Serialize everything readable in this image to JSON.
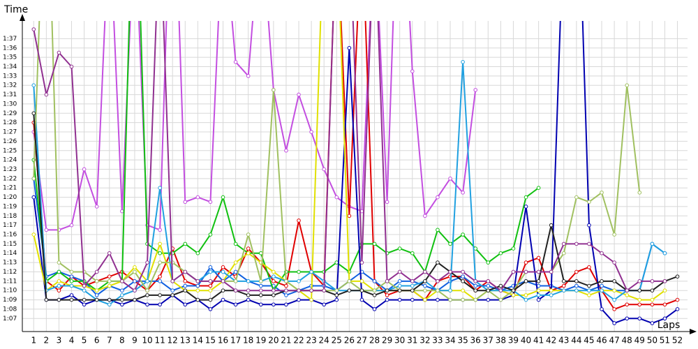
{
  "chart_data": {
    "type": "line",
    "y_label": "Time",
    "x_label": "Laps",
    "x": [
      1,
      2,
      3,
      4,
      5,
      6,
      7,
      8,
      9,
      10,
      11,
      12,
      13,
      14,
      15,
      16,
      17,
      18,
      19,
      20,
      21,
      22,
      23,
      24,
      25,
      26,
      27,
      28,
      29,
      30,
      31,
      32,
      33,
      34,
      35,
      36,
      37,
      38,
      39,
      40,
      41,
      42,
      43,
      44,
      45,
      46,
      47,
      48,
      49,
      50,
      51,
      52
    ],
    "xlim": [
      0.1,
      52.8
    ],
    "xticks": [
      1,
      2,
      3,
      4,
      5,
      6,
      7,
      8,
      9,
      10,
      11,
      12,
      13,
      14,
      15,
      16,
      17,
      18,
      19,
      20,
      21,
      22,
      23,
      24,
      25,
      26,
      27,
      28,
      29,
      30,
      31,
      32,
      33,
      34,
      35,
      36,
      37,
      38,
      39,
      40,
      41,
      42,
      43,
      44,
      45,
      46,
      47,
      48,
      49,
      50,
      51,
      52
    ],
    "ylim": [
      65.6,
      98.9
    ],
    "yticks": [
      {
        "value": 67,
        "label": "1:07"
      },
      {
        "value": 68,
        "label": "1:08"
      },
      {
        "value": 69,
        "label": "1:09"
      },
      {
        "value": 70,
        "label": "1:10"
      },
      {
        "value": 71,
        "label": "1:11"
      },
      {
        "value": 72,
        "label": "1:12"
      },
      {
        "value": 73,
        "label": "1:13"
      },
      {
        "value": 74,
        "label": "1:14"
      },
      {
        "value": 75,
        "label": "1:15"
      },
      {
        "value": 76,
        "label": "1:16"
      },
      {
        "value": 77,
        "label": "1:17"
      },
      {
        "value": 78,
        "label": "1:18"
      },
      {
        "value": 79,
        "label": "1:19"
      },
      {
        "value": 80,
        "label": "1:20"
      },
      {
        "value": 81,
        "label": "1:21"
      },
      {
        "value": 82,
        "label": "1:22"
      },
      {
        "value": 83,
        "label": "1:23"
      },
      {
        "value": 84,
        "label": "1:24"
      },
      {
        "value": 85,
        "label": "1:25"
      },
      {
        "value": 86,
        "label": "1:26"
      },
      {
        "value": 87,
        "label": "1:27"
      },
      {
        "value": 88,
        "label": "1:28"
      },
      {
        "value": 89,
        "label": "1:29"
      },
      {
        "value": 90,
        "label": "1:30"
      },
      {
        "value": 91,
        "label": "1:31"
      },
      {
        "value": 92,
        "label": "1:32"
      },
      {
        "value": 93,
        "label": "1:33"
      },
      {
        "value": 94,
        "label": "1:34"
      },
      {
        "value": 95,
        "label": "1:35"
      },
      {
        "value": 96,
        "label": "1:36"
      },
      {
        "value": 97,
        "label": "1:37"
      }
    ],
    "grid": true,
    "series": [
      {
        "color": "#c34ee0",
        "values": [
          87,
          76.5,
          76.5,
          77,
          83,
          79,
          110,
          78.5,
          110,
          77,
          76.5,
          120,
          79.5,
          80,
          79.5,
          110,
          94.5,
          93,
          110,
          91.5,
          85,
          91,
          87,
          83,
          80,
          79,
          78.5,
          110,
          79.5,
          120,
          93.5,
          78,
          80,
          82,
          80.5,
          91.5,
          null,
          null,
          null,
          null,
          null,
          null,
          null,
          null,
          null,
          null,
          null,
          null,
          null,
          null,
          null,
          null
        ]
      },
      {
        "color": "#e00000",
        "values": [
          88,
          71,
          70,
          71.5,
          70.5,
          71,
          71.5,
          72,
          71,
          70,
          71.5,
          74.5,
          71,
          70.5,
          70.5,
          72.5,
          71.5,
          74.5,
          73,
          71,
          70.5,
          77.5,
          72,
          70.5,
          110,
          78,
          110,
          71,
          69.5,
          70,
          70,
          69,
          71,
          71.5,
          71.5,
          70,
          71,
          70,
          69.5,
          73,
          73.5,
          70,
          70.5,
          72,
          72.5,
          70,
          68,
          68.5,
          68.5,
          68.5,
          68.5,
          69
        ]
      },
      {
        "color": "#1060e0",
        "values": [
          82,
          71.5,
          72,
          71.5,
          71,
          69.5,
          70.5,
          70,
          71,
          71,
          71,
          70,
          70.5,
          70.5,
          72.5,
          71,
          72,
          71,
          70.5,
          70.5,
          69.5,
          70,
          70.5,
          70.5,
          70,
          71,
          72,
          71,
          70,
          71,
          71,
          70.5,
          70,
          71,
          71.5,
          70.5,
          70.5,
          70,
          70.5,
          71,
          70.5,
          70.5,
          70,
          70.5,
          70,
          70.5,
          70,
          70,
          70,
          75,
          74,
          null
        ]
      },
      {
        "color": "#10c010",
        "values": [
          84,
          71,
          72,
          71,
          71,
          70,
          71,
          71,
          120,
          75,
          74,
          74,
          75,
          74,
          76,
          80,
          75,
          74,
          74,
          70,
          72,
          72,
          72,
          72,
          73,
          72,
          75,
          75,
          74,
          74.5,
          74,
          72,
          76.5,
          75,
          76,
          74.5,
          73,
          74,
          74.5,
          80,
          81,
          null,
          null,
          null,
          null,
          null,
          null,
          null,
          null,
          null,
          null,
          null
        ]
      },
      {
        "color": "#0000b0",
        "values": [
          80,
          69,
          69,
          69.5,
          68.5,
          69,
          69,
          68.5,
          69,
          68.5,
          68.5,
          69.5,
          68.5,
          69,
          68,
          69,
          68.5,
          69,
          68.5,
          68.5,
          68.5,
          69,
          69,
          68.5,
          69,
          96,
          69,
          68,
          69,
          69,
          69,
          69,
          69,
          69,
          69,
          69,
          69,
          69,
          69.5,
          79,
          69,
          70,
          110,
          120,
          77,
          68,
          66.5,
          67,
          67,
          66.5,
          67,
          68
        ]
      },
      {
        "color": "#e0e000",
        "values": [
          76,
          70,
          71,
          70.5,
          70.5,
          70,
          70.5,
          71,
          72.5,
          71,
          75,
          71,
          70,
          70,
          70,
          71,
          73,
          74,
          73,
          72,
          71,
          70,
          69,
          110,
          110,
          71,
          71,
          70,
          70,
          70,
          70,
          69,
          70,
          70,
          70,
          69,
          70,
          70,
          69.5,
          69.5,
          70,
          70,
          70,
          70,
          69.5,
          70,
          70,
          69.5,
          69,
          69,
          70,
          null
        ]
      },
      {
        "color": "#20a0e0",
        "values": [
          92,
          70,
          70.5,
          70.5,
          70,
          69,
          68.5,
          69.5,
          70,
          71,
          81,
          71,
          72,
          71,
          72,
          72,
          71,
          71,
          71,
          71.5,
          71,
          71,
          72,
          71,
          70,
          70,
          70,
          70,
          70,
          70.5,
          70.5,
          71,
          70,
          70,
          94.5,
          71,
          70,
          70,
          70,
          69,
          69.5,
          69.5,
          70,
          70,
          70,
          70,
          69,
          70,
          70,
          75,
          74,
          null
        ]
      },
      {
        "color": "#a0c060",
        "values": [
          82,
          120,
          73,
          72,
          72,
          71,
          71,
          71,
          72,
          70,
          73,
          73,
          72,
          71,
          71,
          71,
          71,
          76,
          71,
          91.5,
          71,
          70,
          70,
          70,
          70,
          71,
          70,
          70,
          71,
          70,
          70,
          70,
          70,
          69,
          69,
          69,
          70,
          69,
          70,
          72,
          72,
          72,
          74,
          80,
          79.5,
          80.5,
          76,
          92,
          80.5,
          null,
          null,
          null
        ]
      },
      {
        "color": "#202020",
        "values": [
          89,
          69,
          69,
          69,
          69,
          69,
          69,
          69,
          69,
          69.5,
          69.5,
          69.5,
          70,
          69,
          69,
          70,
          70,
          69.5,
          69.5,
          69.5,
          70,
          70,
          70,
          70,
          69.5,
          70,
          70,
          69.5,
          70,
          70,
          70,
          71,
          73,
          72,
          71,
          70,
          70,
          70.5,
          70,
          71,
          71,
          77,
          71,
          71,
          70.5,
          71,
          71,
          70,
          70,
          70,
          71,
          71.5
        ]
      },
      {
        "color": "#903090",
        "values": [
          98,
          91,
          95.5,
          94,
          70.5,
          72,
          74,
          71,
          70,
          73,
          110,
          71,
          72,
          71,
          71,
          71,
          70,
          70,
          70,
          70,
          70,
          70,
          70,
          70,
          110,
          110,
          73,
          110,
          71,
          72,
          71,
          72,
          71,
          72,
          72,
          71,
          71,
          70,
          72,
          72,
          72,
          72,
          75,
          75,
          75,
          74,
          73,
          70,
          71,
          71,
          71,
          null
        ]
      }
    ]
  }
}
